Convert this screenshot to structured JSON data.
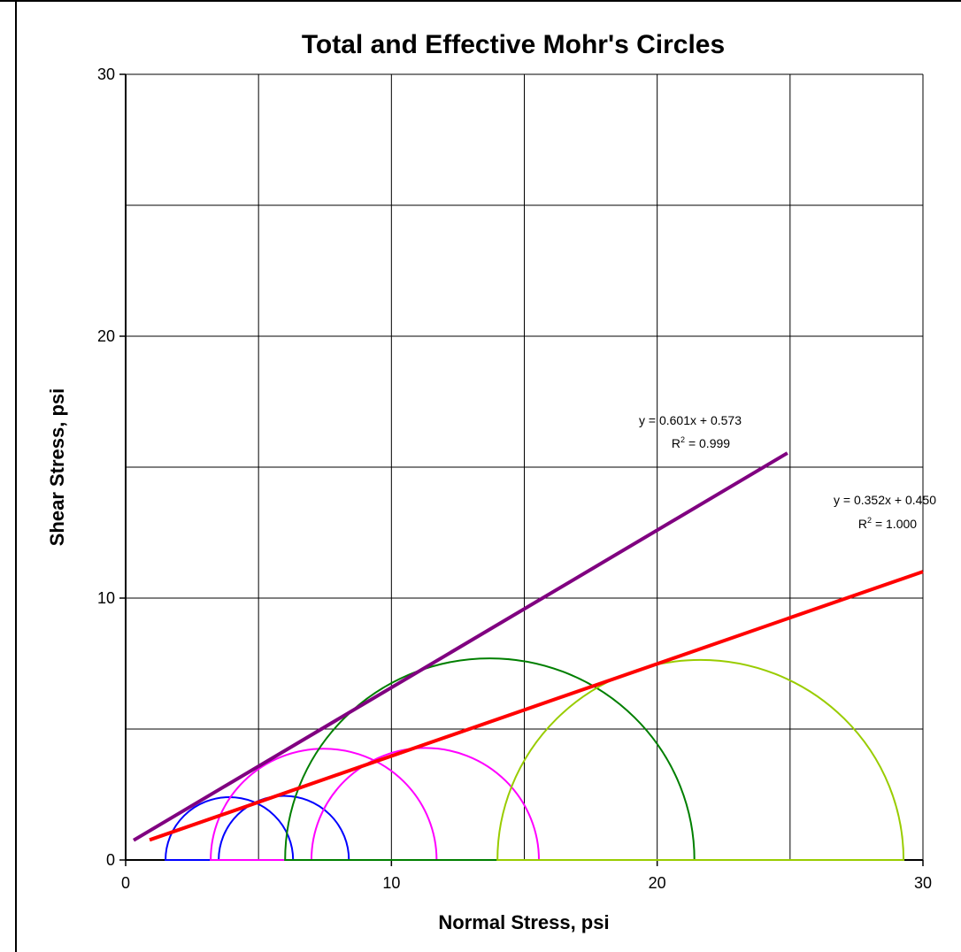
{
  "chart_data": {
    "type": "mohr",
    "title": "Total and Effective Mohr's Circles",
    "x_label": "Normal Stress, psi",
    "y_label": "Shear Stress, psi",
    "xlim": [
      0,
      30
    ],
    "ylim": [
      0,
      30
    ],
    "xticks": [
      0,
      10,
      20,
      30
    ],
    "yticks": [
      0,
      10,
      20,
      30
    ],
    "xgrid": [
      0,
      5,
      10,
      15,
      20,
      25,
      30
    ],
    "ygrid": [
      5,
      10,
      15,
      20,
      25,
      30
    ],
    "circles": [
      {
        "center": 3.9,
        "radius": 2.4,
        "color": "#0000ff"
      },
      {
        "center": 5.95,
        "radius": 2.45,
        "color": "#0000ff"
      },
      {
        "center": 7.45,
        "radius": 4.25,
        "color": "#ff00ff"
      },
      {
        "center": 11.27,
        "radius": 4.28,
        "color": "#ff00ff"
      },
      {
        "center": 13.7,
        "radius": 7.7,
        "color": "#007f00"
      },
      {
        "center": 21.63,
        "radius": 7.64,
        "color": "#99cc00"
      }
    ],
    "lines": [
      {
        "slope": 0.601,
        "intercept": 0.573,
        "x_range": [
          0.3,
          24.9
        ],
        "color": "#800080",
        "equation": "y = 0.601x + 0.573",
        "r2_base": "R",
        "r2_sup": "2",
        "r2_rest": " = 0.999"
      },
      {
        "slope": 0.352,
        "intercept": 0.45,
        "x_range": [
          0.9,
          30
        ],
        "color": "#ff0000",
        "equation": "y = 0.352x + 0.450",
        "r2_base": "R",
        "r2_sup": "2",
        "r2_rest": " = 1.000"
      }
    ]
  }
}
